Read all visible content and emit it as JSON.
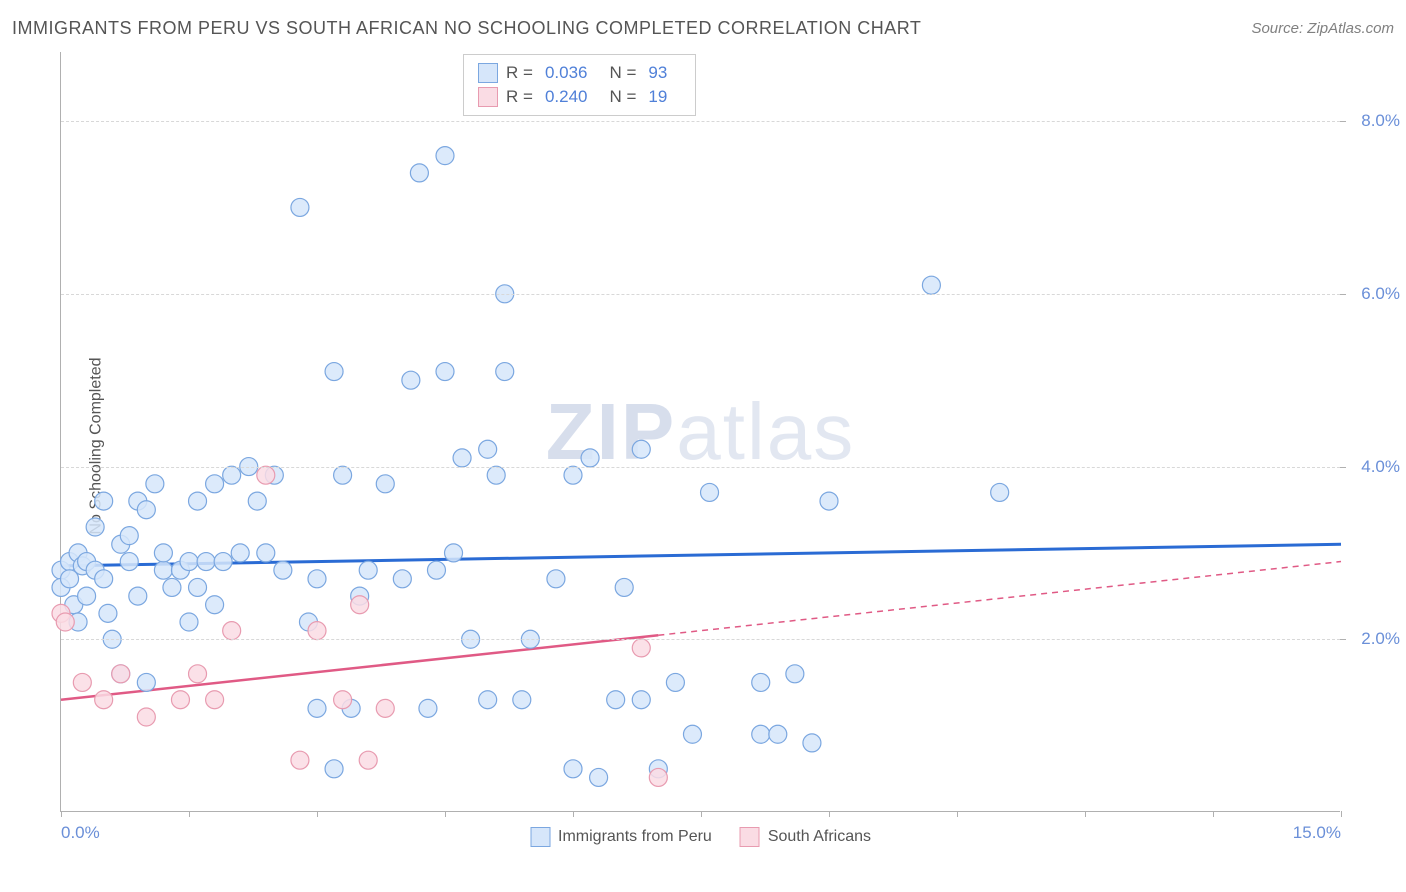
{
  "header": {
    "title": "IMMIGRANTS FROM PERU VS SOUTH AFRICAN NO SCHOOLING COMPLETED CORRELATION CHART",
    "source_label": "Source: ZipAtlas.com"
  },
  "chart": {
    "type": "scatter",
    "y_axis_label": "No Schooling Completed",
    "xlim": [
      0,
      15
    ],
    "ylim": [
      0,
      8.8
    ],
    "x_ticks": [
      0,
      1.5,
      3.0,
      4.5,
      6.0,
      7.5,
      9.0,
      10.5,
      12.0,
      13.5,
      15.0
    ],
    "x_tick_labels": {
      "0": "0.0%",
      "15": "15.0%"
    },
    "y_ticks": [
      2.0,
      4.0,
      6.0,
      8.0
    ],
    "y_tick_labels": [
      "2.0%",
      "4.0%",
      "6.0%",
      "8.0%"
    ],
    "grid_color": "#d8d8d8",
    "axis_color": "#b0b0b0",
    "tick_label_color": "#6a8fd8",
    "background_color": "#ffffff",
    "marker_radius": 9,
    "marker_stroke_width": 1.2,
    "series": [
      {
        "name": "Immigrants from Peru",
        "fill": "#d6e6fa",
        "stroke": "#7ba7e0",
        "points": [
          [
            0.0,
            2.8
          ],
          [
            0.0,
            2.6
          ],
          [
            0.1,
            2.9
          ],
          [
            0.1,
            2.7
          ],
          [
            0.15,
            2.4
          ],
          [
            0.2,
            3.0
          ],
          [
            0.2,
            2.2
          ],
          [
            0.25,
            2.85
          ],
          [
            0.3,
            2.9
          ],
          [
            0.3,
            2.5
          ],
          [
            0.4,
            3.3
          ],
          [
            0.4,
            2.8
          ],
          [
            0.5,
            3.6
          ],
          [
            0.5,
            2.7
          ],
          [
            0.55,
            2.3
          ],
          [
            0.6,
            2.0
          ],
          [
            0.7,
            3.1
          ],
          [
            0.7,
            1.6
          ],
          [
            0.8,
            2.9
          ],
          [
            0.8,
            3.2
          ],
          [
            0.9,
            3.6
          ],
          [
            0.9,
            2.5
          ],
          [
            1.0,
            3.5
          ],
          [
            1.0,
            1.5
          ],
          [
            1.1,
            3.8
          ],
          [
            1.2,
            2.8
          ],
          [
            1.2,
            3.0
          ],
          [
            1.3,
            2.6
          ],
          [
            1.4,
            2.8
          ],
          [
            1.5,
            2.9
          ],
          [
            1.5,
            2.2
          ],
          [
            1.6,
            3.6
          ],
          [
            1.6,
            2.6
          ],
          [
            1.7,
            2.9
          ],
          [
            1.8,
            3.8
          ],
          [
            1.8,
            2.4
          ],
          [
            1.9,
            2.9
          ],
          [
            2.0,
            3.9
          ],
          [
            2.1,
            3.0
          ],
          [
            2.2,
            4.0
          ],
          [
            2.3,
            3.6
          ],
          [
            2.4,
            3.0
          ],
          [
            2.5,
            3.9
          ],
          [
            2.6,
            2.8
          ],
          [
            2.8,
            7.0
          ],
          [
            2.9,
            2.2
          ],
          [
            3.0,
            2.7
          ],
          [
            3.0,
            1.2
          ],
          [
            3.2,
            5.1
          ],
          [
            3.2,
            0.5
          ],
          [
            3.3,
            3.9
          ],
          [
            3.4,
            1.2
          ],
          [
            3.5,
            2.5
          ],
          [
            3.6,
            2.8
          ],
          [
            3.8,
            3.8
          ],
          [
            4.0,
            2.7
          ],
          [
            4.1,
            5.0
          ],
          [
            4.2,
            7.4
          ],
          [
            4.3,
            1.2
          ],
          [
            4.4,
            2.8
          ],
          [
            4.5,
            5.1
          ],
          [
            4.5,
            7.6
          ],
          [
            4.6,
            3.0
          ],
          [
            4.7,
            4.1
          ],
          [
            4.8,
            2.0
          ],
          [
            5.0,
            4.2
          ],
          [
            5.0,
            1.3
          ],
          [
            5.1,
            3.9
          ],
          [
            5.2,
            5.1
          ],
          [
            5.2,
            6.0
          ],
          [
            5.4,
            1.3
          ],
          [
            5.5,
            2.0
          ],
          [
            5.8,
            2.7
          ],
          [
            6.0,
            3.9
          ],
          [
            6.0,
            0.5
          ],
          [
            6.2,
            4.1
          ],
          [
            6.3,
            0.4
          ],
          [
            6.5,
            1.3
          ],
          [
            6.6,
            2.6
          ],
          [
            6.8,
            4.2
          ],
          [
            6.8,
            1.3
          ],
          [
            7.0,
            0.5
          ],
          [
            7.2,
            1.5
          ],
          [
            7.4,
            0.9
          ],
          [
            7.6,
            3.7
          ],
          [
            8.2,
            1.5
          ],
          [
            8.2,
            0.9
          ],
          [
            8.4,
            0.9
          ],
          [
            8.6,
            1.6
          ],
          [
            8.8,
            0.8
          ],
          [
            9.0,
            3.6
          ],
          [
            10.2,
            6.1
          ],
          [
            11.0,
            3.7
          ]
        ],
        "regression": {
          "y_start": 2.85,
          "y_end": 3.1,
          "color": "#2a6bd4",
          "width": 3,
          "dash_start": 15
        }
      },
      {
        "name": "South Africans",
        "fill": "#fadce4",
        "stroke": "#e89bb0",
        "points": [
          [
            0.0,
            2.3
          ],
          [
            0.05,
            2.2
          ],
          [
            0.25,
            1.5
          ],
          [
            0.5,
            1.3
          ],
          [
            0.7,
            1.6
          ],
          [
            1.0,
            1.1
          ],
          [
            1.4,
            1.3
          ],
          [
            1.6,
            1.6
          ],
          [
            1.8,
            1.3
          ],
          [
            2.0,
            2.1
          ],
          [
            2.4,
            3.9
          ],
          [
            2.8,
            0.6
          ],
          [
            3.0,
            2.1
          ],
          [
            3.3,
            1.3
          ],
          [
            3.5,
            2.4
          ],
          [
            3.6,
            0.6
          ],
          [
            3.8,
            1.2
          ],
          [
            6.8,
            1.9
          ],
          [
            7.0,
            0.4
          ]
        ],
        "regression": {
          "y_start": 1.3,
          "y_end": 2.9,
          "color": "#e05a85",
          "width": 2.5,
          "dash_start": 7.0
        }
      }
    ],
    "stat_legend": {
      "rows": [
        {
          "swatch_fill": "#d6e6fa",
          "swatch_stroke": "#7ba7e0",
          "r_label": "R =",
          "r_value": "0.036",
          "n_label": "N =",
          "n_value": "93"
        },
        {
          "swatch_fill": "#fadce4",
          "swatch_stroke": "#e89bb0",
          "r_label": "R =",
          "r_value": "0.240",
          "n_label": "N =",
          "n_value": "19"
        }
      ]
    },
    "bottom_legend": [
      {
        "swatch_fill": "#d6e6fa",
        "swatch_stroke": "#7ba7e0",
        "label": "Immigrants from Peru"
      },
      {
        "swatch_fill": "#fadce4",
        "swatch_stroke": "#e89bb0",
        "label": "South Africans"
      }
    ],
    "watermark": {
      "part1": "ZIP",
      "part2": "atlas"
    }
  }
}
